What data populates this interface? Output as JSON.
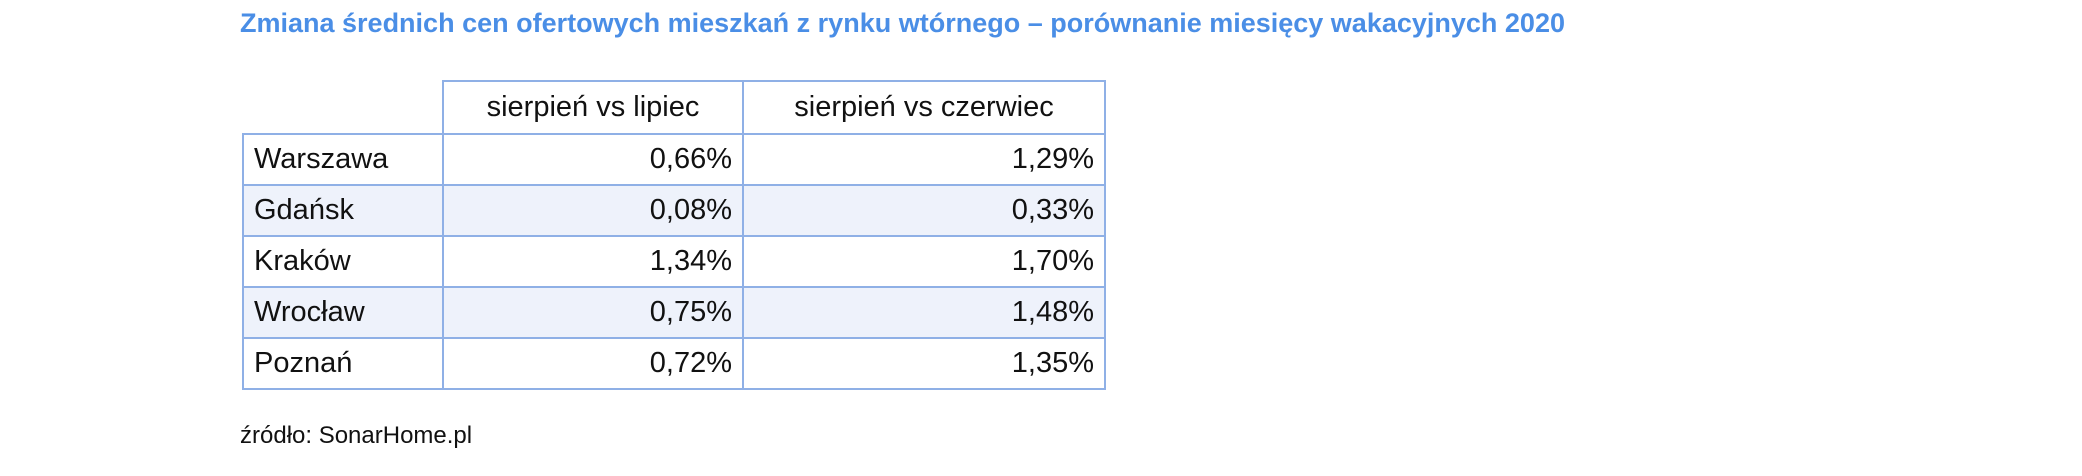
{
  "header": {
    "title": "Zmiana średnich cen ofertowych mieszkań z rynku wtórnego – porównanie miesięcy wakacyjnych 2020"
  },
  "table": {
    "columns": [
      "sierpień vs lipiec",
      "sierpień vs czerwiec"
    ],
    "rows": [
      [
        "Warszawa",
        "0,66%",
        "1,29%"
      ],
      [
        "Gdańsk",
        "0,08%",
        "0,33%"
      ],
      [
        "Kraków",
        "1,34%",
        "1,70%"
      ],
      [
        "Wrocław",
        "0,75%",
        "1,48%"
      ],
      [
        "Poznań",
        "0,72%",
        "1,35%"
      ]
    ]
  },
  "footer": {
    "source": "źródło: SonarHome.pl"
  }
}
